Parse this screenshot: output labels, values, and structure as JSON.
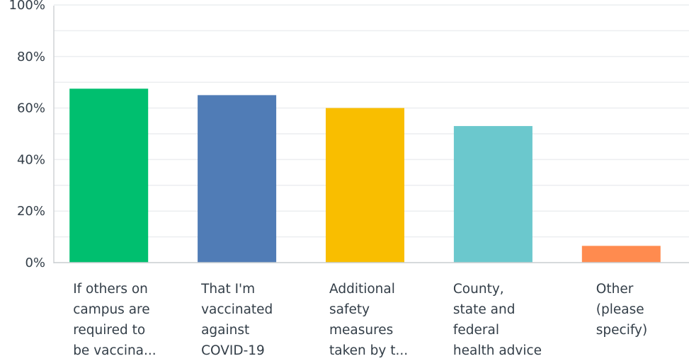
{
  "chart_data": {
    "type": "bar",
    "categories": [
      [
        "If others on",
        "campus are",
        "required to",
        "be vaccina..."
      ],
      [
        "That I'm",
        "vaccinated",
        "against",
        "COVID-19"
      ],
      [
        "Additional",
        "safety",
        "measures",
        "taken by t..."
      ],
      [
        "County,",
        "state and",
        "federal",
        "health advice"
      ],
      [
        "Other",
        "(please",
        "specify)"
      ]
    ],
    "values": [
      67.5,
      65,
      60,
      53,
      6.5
    ],
    "colors": [
      "#00bf6f",
      "#507cb6",
      "#f9be00",
      "#6bc8cd",
      "#ff8b4f"
    ],
    "yticks": [
      "0%",
      "20%",
      "40%",
      "60%",
      "80%",
      "100%"
    ],
    "ylim": [
      0,
      100
    ],
    "grid": true
  }
}
